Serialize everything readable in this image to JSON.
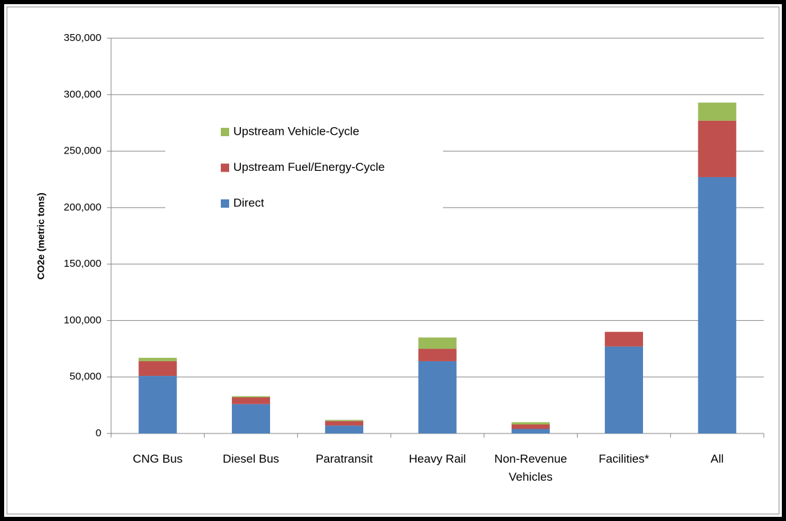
{
  "chart_data": {
    "type": "stacked_bar",
    "y_label": "CO2e (metric tons)",
    "categories": [
      "CNG Bus",
      "Diesel Bus",
      "Paratransit",
      "Heavy Rail",
      "Non-Revenue Vehicles",
      "Facilities*",
      "All"
    ],
    "series": [
      {
        "name": "Direct",
        "color": "#4f81bd",
        "values": [
          51000,
          26000,
          7000,
          64000,
          4000,
          77000,
          227000
        ]
      },
      {
        "name": "Upstream Fuel/Energy-Cycle",
        "color": "#c0504d",
        "values": [
          13000,
          6000,
          4000,
          11000,
          4000,
          13000,
          50000
        ]
      },
      {
        "name": "Upstream Vehicle-Cycle",
        "color": "#9bbb59",
        "values": [
          3000,
          1000,
          1000,
          10000,
          2000,
          0,
          16000
        ]
      }
    ],
    "ylim": [
      0,
      350000
    ],
    "yticks": [
      0,
      {
        "value": 50000,
        "label": "50,000"
      },
      {
        "value": 100000,
        "label": "100,000"
      },
      {
        "value": 150000,
        "label": "150,000"
      },
      {
        "value": 200000,
        "label": "200,000"
      },
      {
        "value": 250000,
        "label": "250,000"
      },
      {
        "value": 300000,
        "label": "300,000"
      },
      {
        "value": 350000,
        "label": "350,000"
      }
    ],
    "grid": true
  }
}
